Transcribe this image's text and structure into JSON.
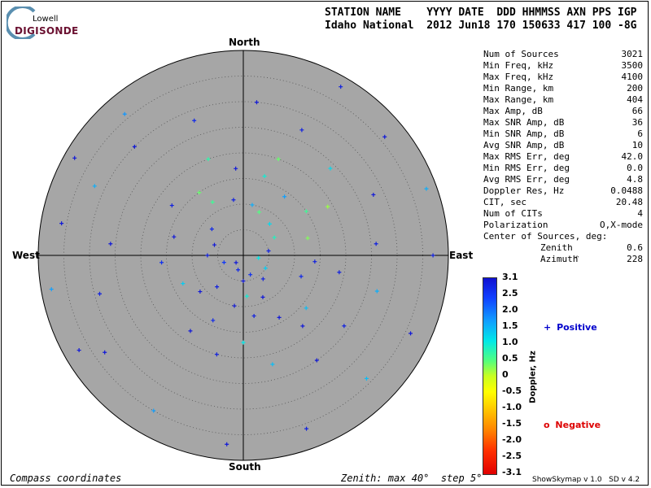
{
  "logo": {
    "top_text": "Lowell",
    "brand_text": "DIGISONDE"
  },
  "header": {
    "line1": "STATION NAME    YYYY DATE  DDD HHMMSS AXN PPS IGP",
    "line2": "Idaho National  2012 Jun18 170 150633 417 100 -8G"
  },
  "compass": {
    "north": "North",
    "south": "South",
    "east": "East",
    "west": "West"
  },
  "stats": [
    {
      "label": "Num of Sources",
      "value": "3021"
    },
    {
      "label": "Min Freq, kHz",
      "value": "3500"
    },
    {
      "label": "Max Freq, kHz",
      "value": "4100"
    },
    {
      "label": "Min Range, km",
      "value": "200"
    },
    {
      "label": "Max Range, km",
      "value": "404"
    },
    {
      "label": "Max Amp, dB",
      "value": "66"
    },
    {
      "label": "Max SNR Amp, dB",
      "value": "36"
    },
    {
      "label": "Min SNR Amp, dB",
      "value": "6"
    },
    {
      "label": "Avg SNR Amp, dB",
      "value": "10"
    },
    {
      "label": "Max RMS Err, deg",
      "value": "42.0"
    },
    {
      "label": "Min RMS Err, deg",
      "value": "0.0"
    },
    {
      "label": "Avg RMS Err, deg",
      "value": "4.8"
    },
    {
      "label": "Doppler Res, Hz",
      "value": "0.0488"
    },
    {
      "label": "CIT, sec",
      "value": "20.48"
    },
    {
      "label": "Num of CITs",
      "value": "4"
    },
    {
      "label": "Polarization",
      "value": "O,X-mode"
    }
  ],
  "center": {
    "title": "Center of Sources, deg:",
    "zenith_label": "Zenith",
    "zenith_value": "0.6",
    "azimuth_label": "Azimuth",
    "azimuth_value": "228"
  },
  "colorbar": {
    "title": "Doppler, Hz",
    "ticks": [
      "3.1",
      "2.5",
      "2.0",
      "1.5",
      "1.0",
      "0.5",
      "0",
      "-0.5",
      "-1.0",
      "-1.5",
      "-2.0",
      "-2.5",
      "-3.1"
    ],
    "top_color": "#1010d0",
    "bottom_color": "#e00000"
  },
  "legend": {
    "positive_symbol": "+",
    "positive_label": "Positive",
    "positive_color": "#0000cc",
    "negative_symbol": "o",
    "negative_label": "Negative",
    "negative_color": "#dd0000"
  },
  "footer": {
    "left": "Compass coordinates",
    "middle": "Zenith: max 40°  step 5°",
    "right": "ShowSkymap v 1.0   SD v 4.2"
  },
  "plot": {
    "background_color": "#a6a6a6",
    "zenith_max_deg": 40,
    "zenith_step_deg": 5,
    "sources": [
      {
        "az": 225,
        "zen": 2,
        "dop": 3.0
      },
      {
        "az": 200,
        "zen": 3,
        "dop": 2.8
      },
      {
        "az": 250,
        "zen": 4,
        "dop": 2.6
      },
      {
        "az": 180,
        "zen": 5,
        "dop": 3.0
      },
      {
        "az": 160,
        "zen": 4,
        "dop": 2.7
      },
      {
        "az": 140,
        "zen": 6,
        "dop": 2.9
      },
      {
        "az": 120,
        "zen": 5,
        "dop": 1.2
      },
      {
        "az": 100,
        "zen": 3,
        "dop": 1.0
      },
      {
        "az": 80,
        "zen": 5,
        "dop": 2.9
      },
      {
        "az": 60,
        "zen": 7,
        "dop": 0.8
      },
      {
        "az": 40,
        "zen": 8,
        "dop": 1.1
      },
      {
        "az": 20,
        "zen": 9,
        "dop": 0.5
      },
      {
        "az": 10,
        "zen": 10,
        "dop": 1.4
      },
      {
        "az": 350,
        "zen": 11,
        "dop": 2.9
      },
      {
        "az": 330,
        "zen": 12,
        "dop": 0.6
      },
      {
        "az": 310,
        "zen": 8,
        "dop": 2.8
      },
      {
        "az": 290,
        "zen": 6,
        "dop": 3.0
      },
      {
        "az": 270,
        "zen": 7,
        "dop": 2.9
      },
      {
        "az": 190,
        "zen": 10,
        "dop": 3.0
      },
      {
        "az": 170,
        "zen": 12,
        "dop": 2.9
      },
      {
        "az": 150,
        "zen": 14,
        "dop": 3.0
      },
      {
        "az": 130,
        "zen": 16,
        "dop": 1.3
      },
      {
        "az": 110,
        "zen": 12,
        "dop": 2.8
      },
      {
        "az": 95,
        "zen": 14,
        "dop": 2.9
      },
      {
        "az": 75,
        "zen": 13,
        "dop": 0.3
      },
      {
        "az": 55,
        "zen": 15,
        "dop": 0.6
      },
      {
        "az": 35,
        "zen": 14,
        "dop": 1.5
      },
      {
        "az": 15,
        "zen": 16,
        "dop": 0.9
      },
      {
        "az": 355,
        "zen": 17,
        "dop": 3.0
      },
      {
        "az": 325,
        "zen": 15,
        "dop": 0.4
      },
      {
        "az": 305,
        "zen": 17,
        "dop": 2.9
      },
      {
        "az": 285,
        "zen": 14,
        "dop": 3.0
      },
      {
        "az": 265,
        "zen": 16,
        "dop": 2.7
      },
      {
        "az": 245,
        "zen": 13,
        "dop": 1.2
      },
      {
        "az": 215,
        "zen": 18,
        "dop": 3.0
      },
      {
        "az": 195,
        "zen": 20,
        "dop": 2.9
      },
      {
        "az": 165,
        "zen": 22,
        "dop": 1.3
      },
      {
        "az": 145,
        "zen": 25,
        "dop": 3.0
      },
      {
        "az": 125,
        "zen": 24,
        "dop": 2.9
      },
      {
        "az": 105,
        "zen": 27,
        "dop": 1.4
      },
      {
        "az": 85,
        "zen": 26,
        "dop": 2.9
      },
      {
        "az": 65,
        "zen": 28,
        "dop": 3.0
      },
      {
        "az": 45,
        "zen": 24,
        "dop": 1.1
      },
      {
        "az": 25,
        "zen": 27,
        "dop": 2.9
      },
      {
        "az": 5,
        "zen": 30,
        "dop": 3.0
      },
      {
        "az": 340,
        "zen": 28,
        "dop": 2.8
      },
      {
        "az": 315,
        "zen": 30,
        "dop": 3.0
      },
      {
        "az": 295,
        "zen": 32,
        "dop": 1.4
      },
      {
        "az": 275,
        "zen": 26,
        "dop": 3.0
      },
      {
        "az": 255,
        "zen": 29,
        "dop": 2.9
      },
      {
        "az": 235,
        "zen": 33,
        "dop": 3.0
      },
      {
        "az": 210,
        "zen": 35,
        "dop": 1.5
      },
      {
        "az": 185,
        "zen": 37,
        "dop": 3.0
      },
      {
        "az": 160,
        "zen": 36,
        "dop": 2.9
      },
      {
        "az": 135,
        "zen": 34,
        "dop": 1.3
      },
      {
        "az": 115,
        "zen": 36,
        "dop": 3.0
      },
      {
        "az": 90,
        "zen": 37,
        "dop": 2.9
      },
      {
        "az": 70,
        "zen": 38,
        "dop": 1.4
      },
      {
        "az": 50,
        "zen": 36,
        "dop": 3.0
      },
      {
        "az": 30,
        "zen": 38,
        "dop": 2.9
      },
      {
        "az": 320,
        "zen": 36,
        "dop": 1.6
      },
      {
        "az": 300,
        "zen": 38,
        "dop": 3.0
      },
      {
        "az": 280,
        "zen": 36,
        "dop": 3.0
      },
      {
        "az": 260,
        "zen": 38,
        "dop": 1.5
      },
      {
        "az": 240,
        "zen": 37,
        "dop": 3.0
      },
      {
        "az": 340,
        "zen": 20,
        "dop": 0.7
      },
      {
        "az": 20,
        "zen": 20,
        "dop": 0.4
      },
      {
        "az": 60,
        "zen": 19,
        "dop": 0.2
      },
      {
        "az": 100,
        "zen": 19,
        "dop": 2.9
      },
      {
        "az": 140,
        "zen": 18,
        "dop": 3.0
      },
      {
        "az": 180,
        "zen": 17,
        "dop": 1.0
      },
      {
        "az": 220,
        "zen": 8,
        "dop": 2.9
      },
      {
        "az": 230,
        "zen": 11,
        "dop": 3.0
      },
      {
        "az": 205,
        "zen": 14,
        "dop": 2.8
      },
      {
        "az": 175,
        "zen": 8,
        "dop": 0.9
      },
      {
        "az": 155,
        "zen": 9,
        "dop": 3.0
      }
    ]
  }
}
